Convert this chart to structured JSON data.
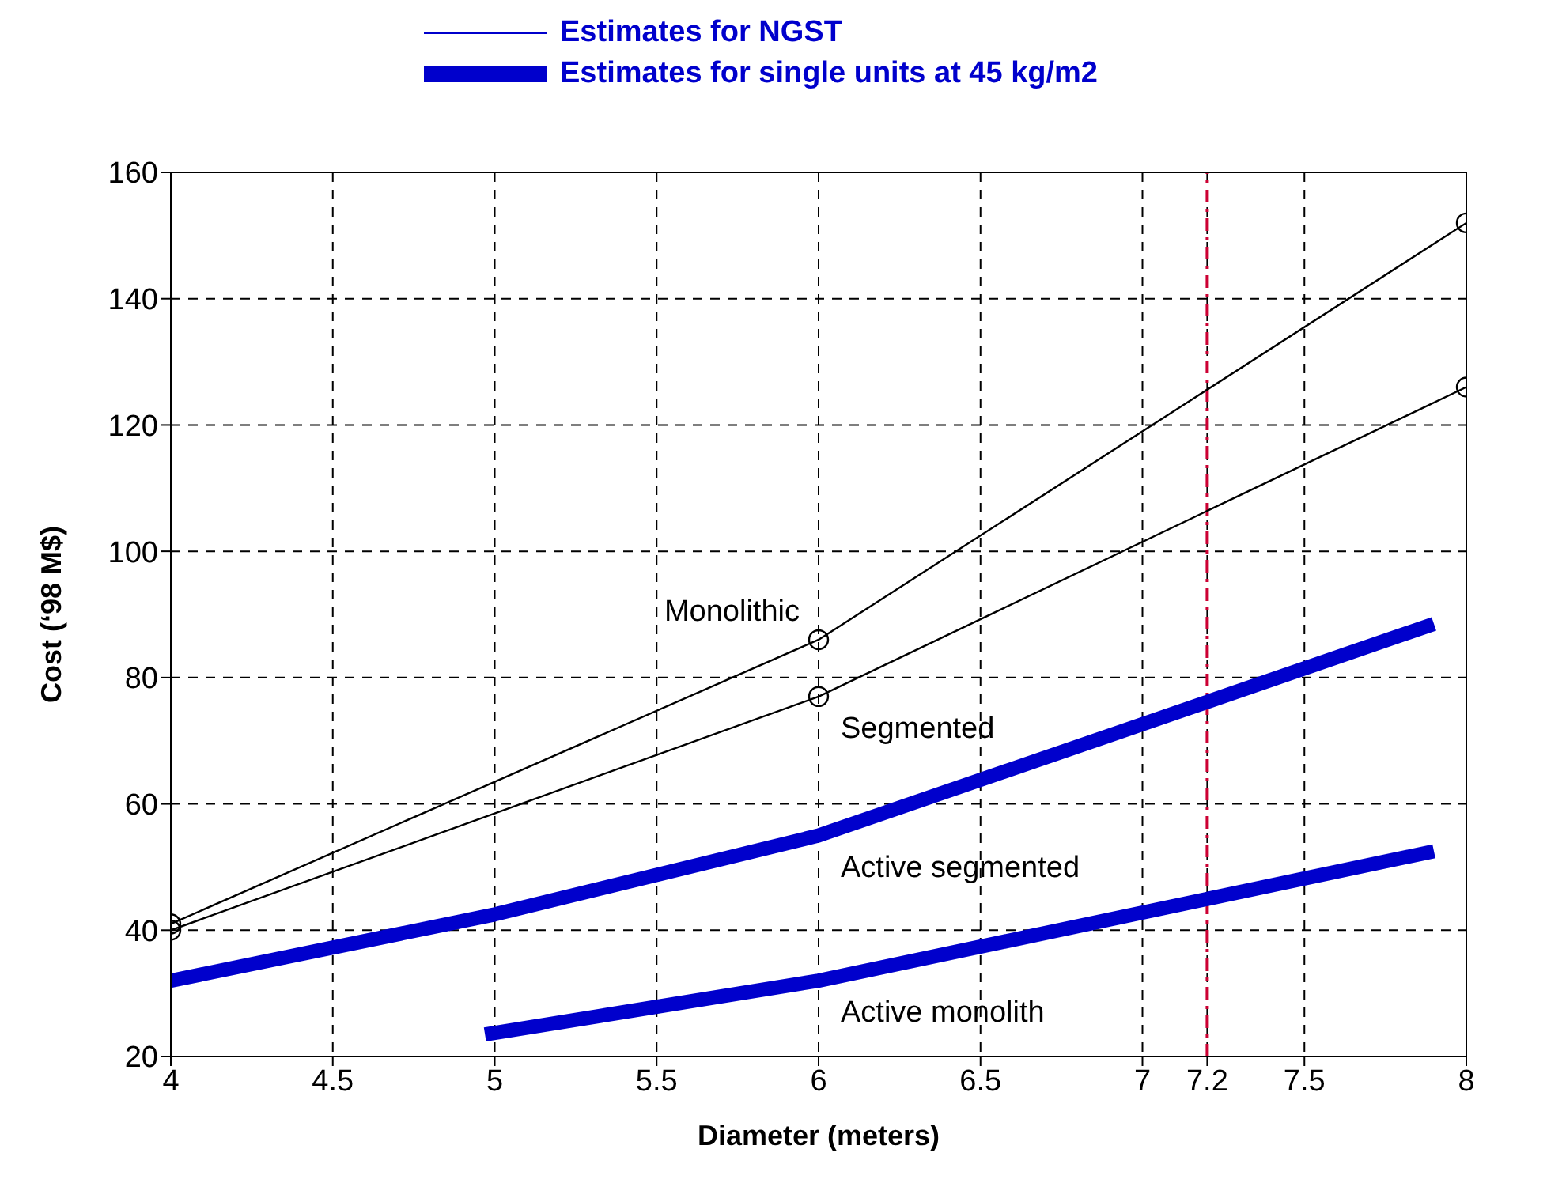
{
  "chart_data": {
    "type": "line",
    "xlabel": "Diameter (meters)",
    "ylabel": "Cost (‘98 M$)",
    "annotations": [
      "Estimates for NGST",
      "Estimates for single units at 45 kg/m2"
    ],
    "xlim": [
      4,
      8
    ],
    "xticks": [
      4,
      4.5,
      5,
      5.5,
      6,
      6.5,
      7,
      7.2,
      7.5,
      8
    ],
    "ylim": [
      20,
      160
    ],
    "yticks": [
      20,
      40,
      60,
      80,
      100,
      120,
      140,
      160
    ],
    "grid": true,
    "line_style": "solid",
    "ref_lines": [
      {
        "axis": "x",
        "value": 7.2,
        "color": "#cc0033",
        "line_style": "dashdot"
      }
    ],
    "series": [
      {
        "name": "Monolithic",
        "color": "#000000",
        "marker": "circle",
        "x": [
          4,
          6,
          8
        ],
        "values": [
          41,
          86,
          152
        ]
      },
      {
        "name": "Segmented",
        "color": "#000000",
        "marker": "circle",
        "x": [
          4,
          6,
          8
        ],
        "values": [
          40,
          77,
          126
        ]
      },
      {
        "name": "Active segmented",
        "color": "#0000cc",
        "marker": "none",
        "x": [
          4,
          5,
          6,
          7.9
        ],
        "values": [
          32,
          42.5,
          55,
          88.5
        ]
      },
      {
        "name": "Active monolith",
        "color": "#0000cc",
        "marker": "none",
        "x": [
          4.97,
          6,
          7.9
        ],
        "values": [
          23.5,
          32,
          52.5
        ]
      }
    ]
  }
}
